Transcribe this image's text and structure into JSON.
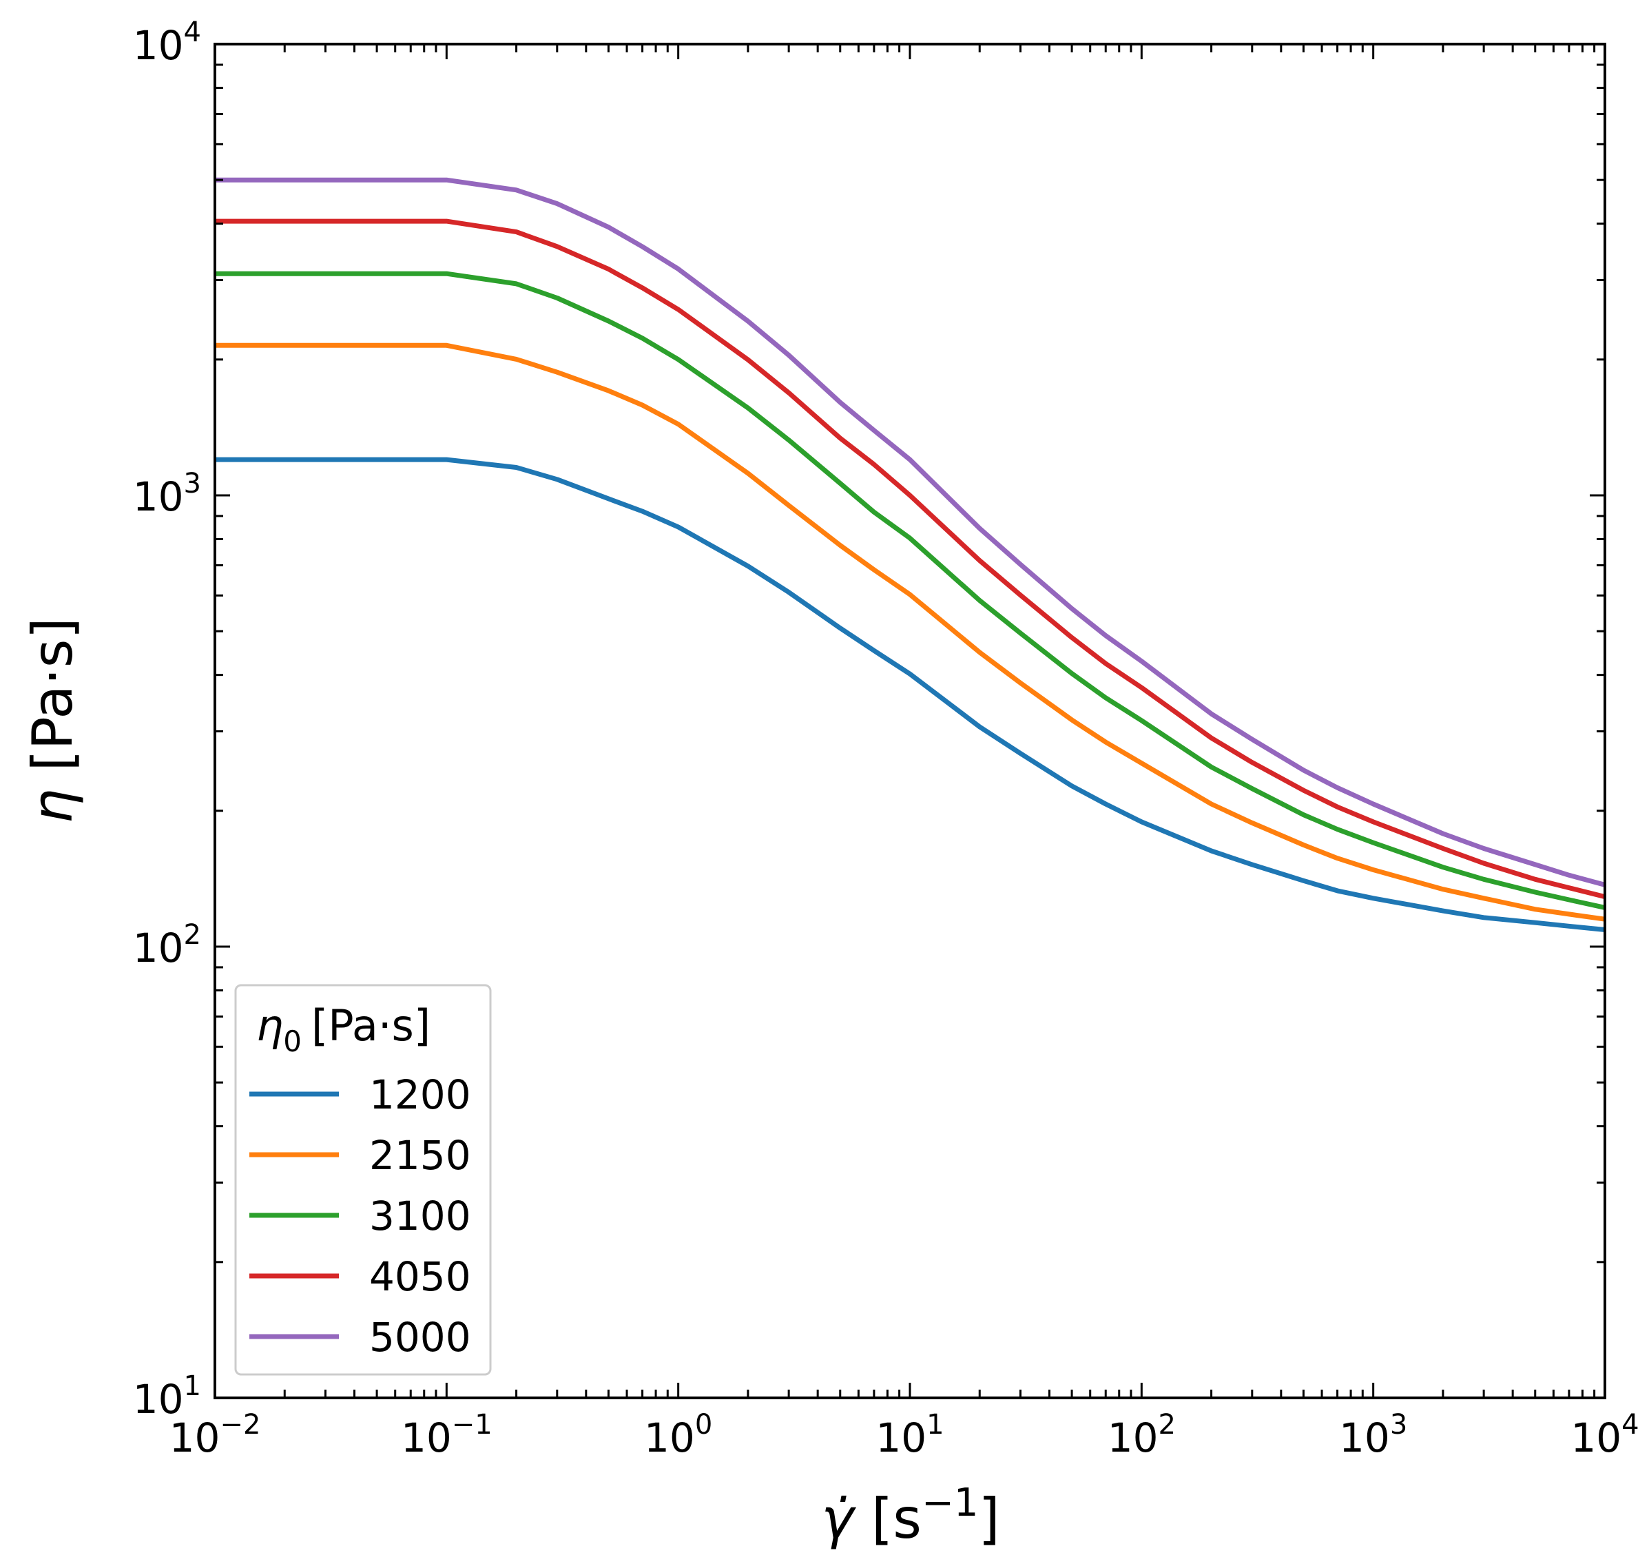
{
  "chart_data": {
    "type": "line",
    "title": "",
    "xscale": "log",
    "yscale": "log",
    "xlim": [
      0.01,
      10000
    ],
    "ylim": [
      10,
      10000
    ],
    "x_ticks": [
      {
        "base": "10",
        "exp": "−2"
      },
      {
        "base": "10",
        "exp": "−1"
      },
      {
        "base": "10",
        "exp": "0"
      },
      {
        "base": "10",
        "exp": "1"
      },
      {
        "base": "10",
        "exp": "2"
      },
      {
        "base": "10",
        "exp": "3"
      },
      {
        "base": "10",
        "exp": "4"
      }
    ],
    "y_ticks": [
      {
        "base": "10",
        "exp": "1"
      },
      {
        "base": "10",
        "exp": "2"
      },
      {
        "base": "10",
        "exp": "3"
      },
      {
        "base": "10",
        "exp": "4"
      }
    ],
    "xlabel": {
      "symbol": "γ̇",
      "unit_open": "[s",
      "unit_exp": "−1",
      "unit_close": "]"
    },
    "ylabel": {
      "symbol": "η",
      "unit": "[Pa·s]"
    },
    "legend": {
      "title_symbol": "η",
      "title_sub": "0",
      "title_unit": "[Pa·s]",
      "placement": "lower-left"
    },
    "x": [
      0.01,
      0.1,
      0.2,
      0.3,
      0.5,
      0.7,
      1,
      2,
      3,
      5,
      7,
      10,
      20,
      30,
      50,
      70,
      100,
      200,
      300,
      500,
      700,
      1000,
      2000,
      3000,
      5000,
      7000,
      10000
    ],
    "series": [
      {
        "name": "1200",
        "color": "#1f77b4",
        "values": [
          1200,
          1200,
          1153,
          1085,
          983,
          922,
          851,
          697,
          610,
          508,
          453,
          402,
          307,
          268,
          227,
          207,
          189,
          163,
          152,
          140,
          133,
          128,
          120,
          116,
          113,
          111,
          109
        ]
      },
      {
        "name": "2150",
        "color": "#ff7f0e",
        "values": [
          2150,
          2150,
          2003,
          1875,
          1706,
          1585,
          1438,
          1119,
          950,
          775,
          684,
          603,
          449,
          384,
          318,
          284,
          255,
          207,
          188,
          168,
          157,
          148,
          134,
          128,
          121,
          118,
          115
        ]
      },
      {
        "name": "3100",
        "color": "#2ca02c",
        "values": [
          3100,
          3100,
          2943,
          2738,
          2434,
          2230,
          2000,
          1562,
          1326,
          1063,
          918,
          804,
          585,
          495,
          403,
          356,
          317,
          250,
          224,
          196,
          182,
          170,
          150,
          141,
          132,
          127,
          122
        ]
      },
      {
        "name": "4050",
        "color": "#d62728",
        "values": [
          4050,
          4050,
          3836,
          3560,
          3172,
          2883,
          2582,
          1998,
          1688,
          1339,
          1171,
          1000,
          717,
          601,
          484,
          424,
          375,
          290,
          256,
          222,
          204,
          189,
          165,
          153,
          141,
          135,
          129
        ]
      },
      {
        "name": "5000",
        "color": "#9467bd",
        "values": [
          5000,
          5000,
          4750,
          4430,
          3930,
          3557,
          3174,
          2432,
          2045,
          1607,
          1393,
          1200,
          845,
          703,
          561,
          489,
          429,
          328,
          288,
          246,
          225,
          207,
          178,
          165,
          152,
          144,
          137
        ]
      }
    ]
  }
}
